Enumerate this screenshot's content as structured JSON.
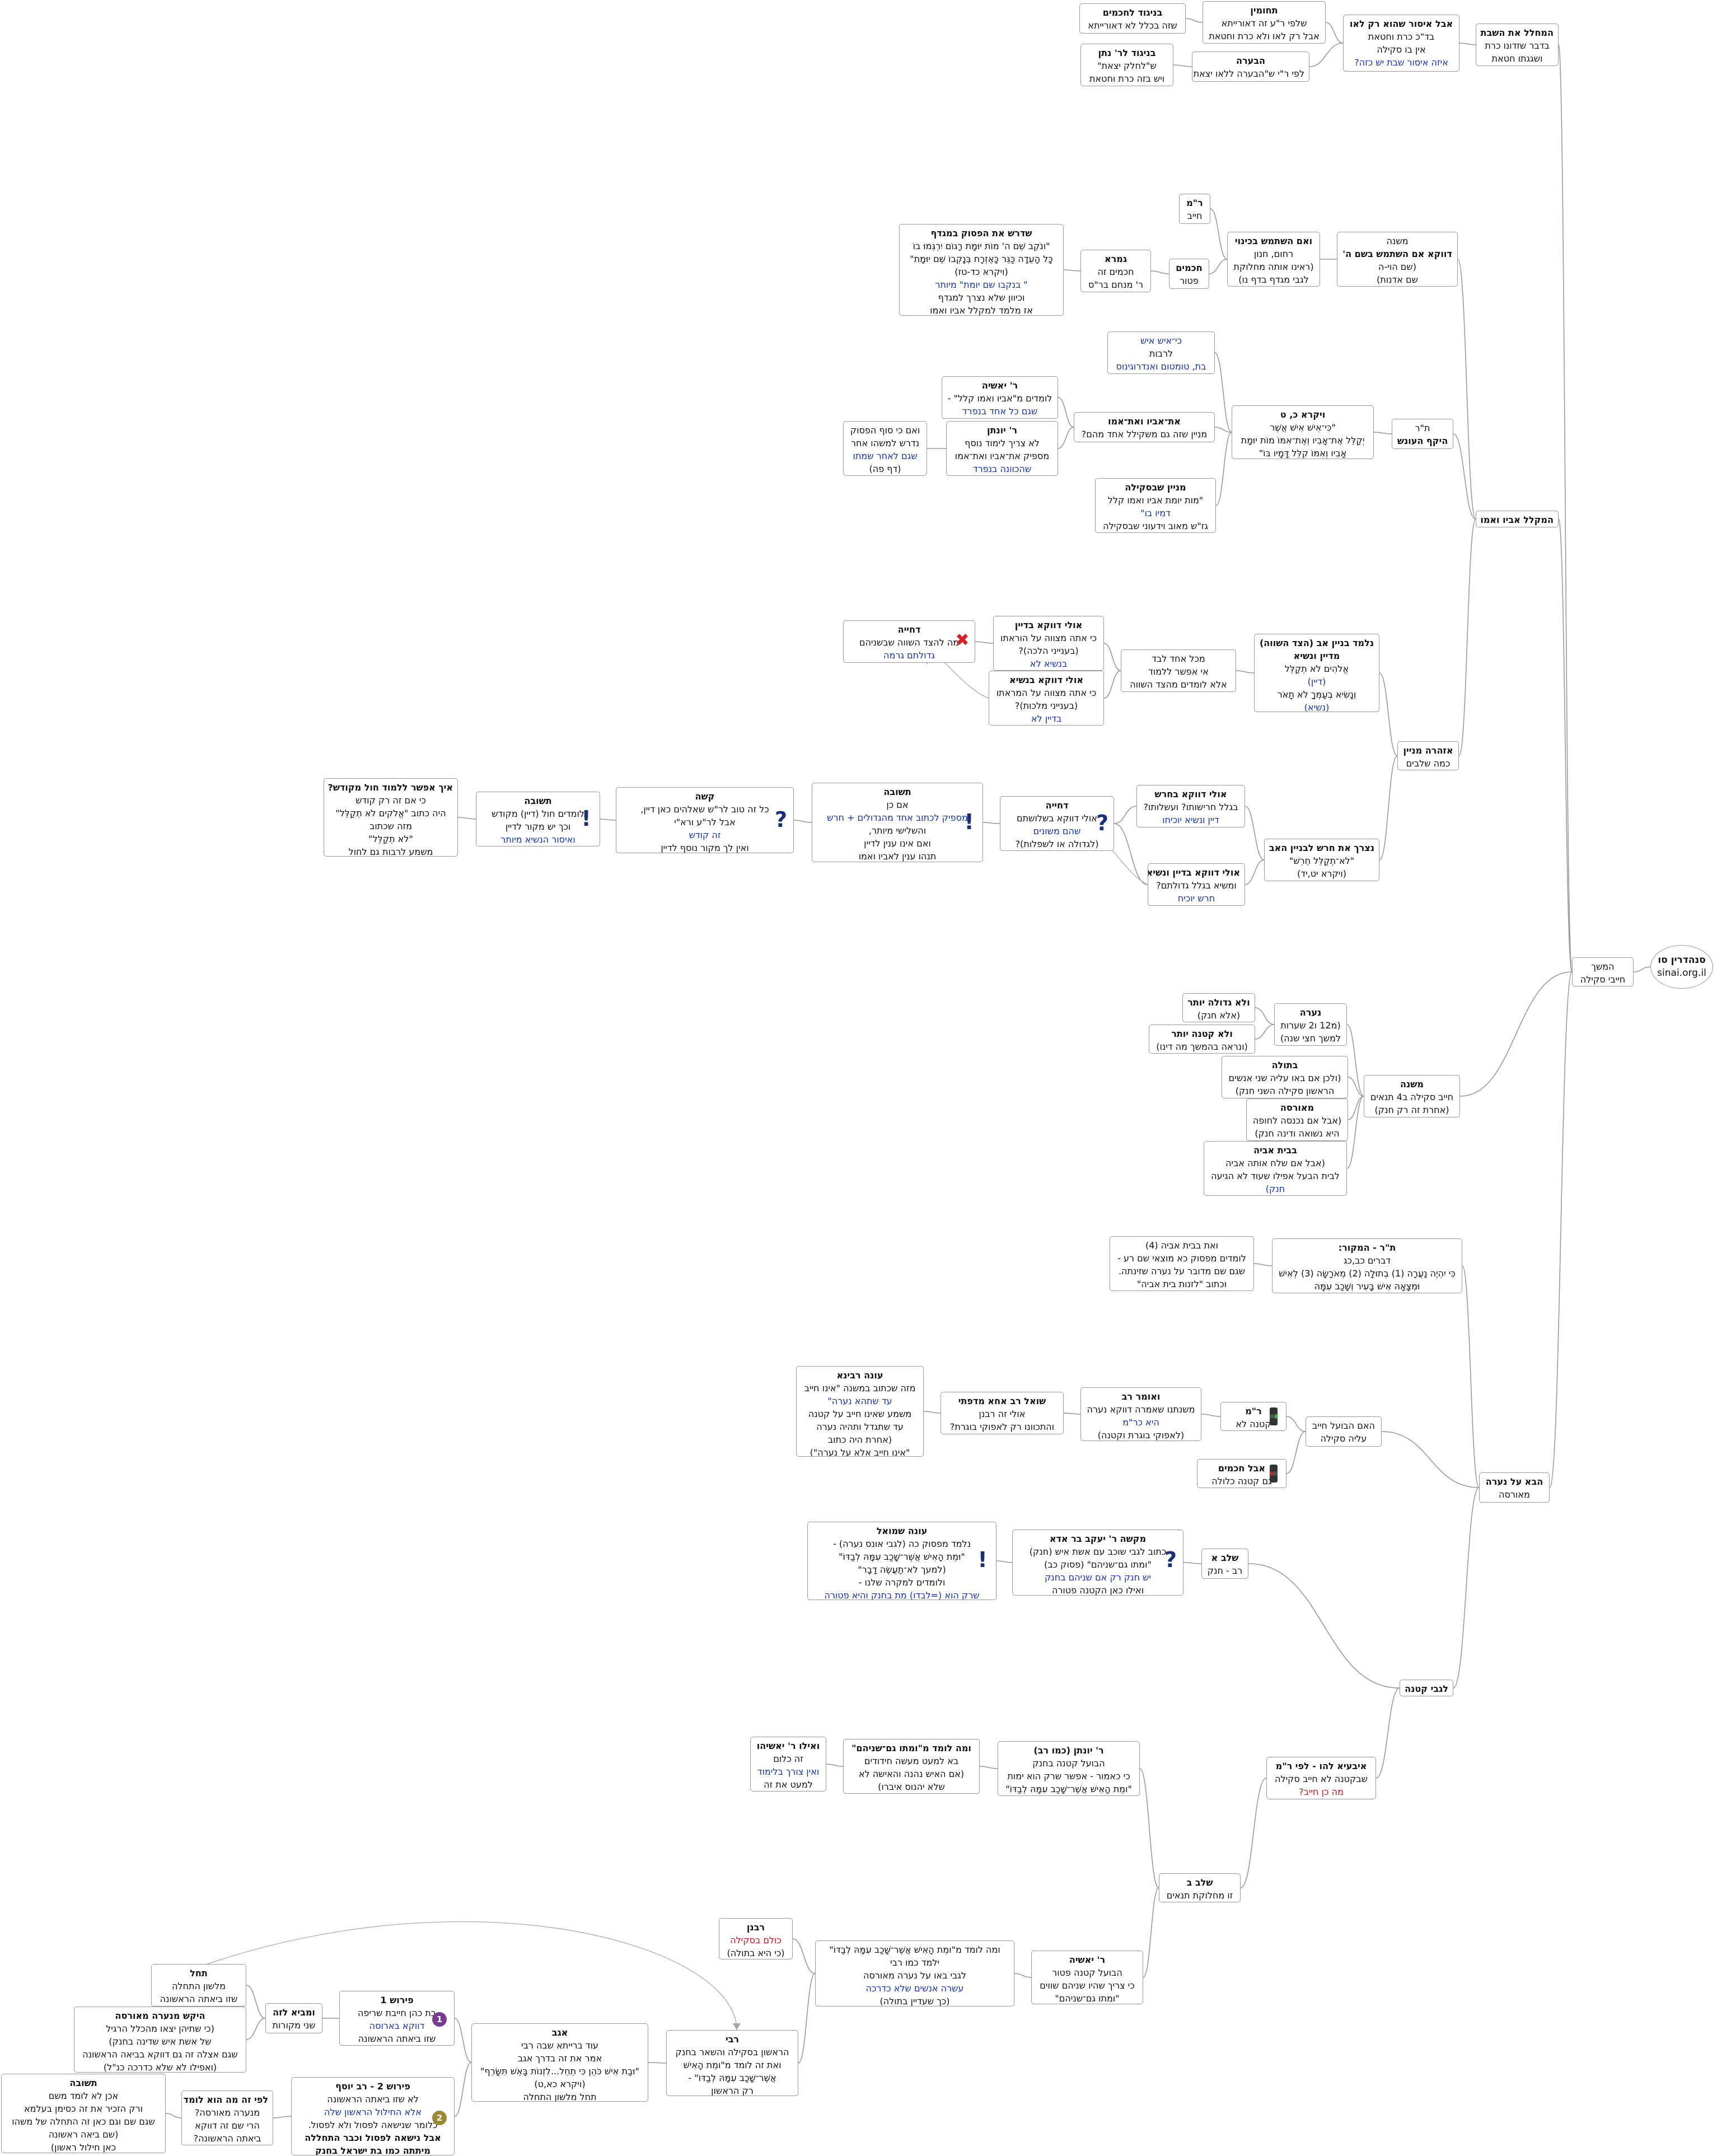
{
  "root": {
    "title": "סנהדרין סו",
    "site": "sinai.org.il"
  },
  "colors": {
    "blue": "#1030c8",
    "red": "#d01414",
    "line": "#9a9a9a",
    "icon": "#1a2f7a"
  },
  "nodes": {
    "hemshech": [
      "המשך",
      "חייבי סקילה"
    ],
    "mechalel": [
      "המחלל את השבת",
      "בדבר שזדונו כרת",
      "ושגגתו חטאת"
    ],
    "aval_isur": [
      "אבל איסור שהוא רק לאו",
      "בד\"כ כרת וחטאת",
      "אין בו סקילה",
      "איזה איסור שבת יש כזה?"
    ],
    "tchumin": [
      "תחומין",
      "שלפי ר\"ע זה דאורייתא",
      "אבל רק לאו ולא כרת וחטאת"
    ],
    "bnigud_chachamim": [
      "בניגוד לחכמים",
      "שזה בכלל לא דאורייתא"
    ],
    "havara": [
      "הבערה",
      "לפי ר\"י ש\"הבערה ללאו יצאת\""
    ],
    "bnigud_rnatan": [
      "בניגוד לר' נתן",
      "ש\"לחלק יצאת\"",
      "ויש בזה כרת וחטאת"
    ],
    "hamekalel": [
      "המקלל אביו ואמו"
    ],
    "mishna_mekalel": [
      "משנה",
      "דווקא אם השתמש בשם ה'",
      "(שם הוי-ה",
      "שם אדנות)"
    ],
    "im_hishtamesh": [
      "ואם השתמש בכינוי",
      "רחום, חנון",
      "(ראינו אותה מחלוקת",
      "לגבי מגדף בדף נו)"
    ],
    "rm": [
      "ר\"מ",
      "חייב"
    ],
    "chachamim": [
      "חכמים",
      "פטור"
    ],
    "gemara_mekalel": [
      "גמרא",
      "חכמים זה",
      "ר' מנחם בר\"ס"
    ],
    "shdarash": [
      "שדרש את הפסוק במגדף",
      "\"ונֹקֵב שֵׁם ה' מוֹת יוּמָת רָגוֹם יִרְגְּמוּ בוֹ",
      "כָּל הָעֵדָה כַּגֵּר כָּאֶזְרָח בְּנָקְבוֹ שֵׁם יוּמָת\"",
      "(ויקרא כד-טז)",
      "\" בנקבו שם יומת\" מיותר",
      "וכיוון שלא נצרך למגדף",
      "אז מלמד למקלל אביו ואמו"
    ],
    "tr_hekesh": [
      "ת\"ר",
      "היקף העונש"
    ],
    "vayikra": [
      "ויקרא כ, ט",
      "\"כִּי־אִישׁ אִישׁ אֲשֶׁר",
      "יְקַלֵּל אֶת־אָבִיו וְאֶת־אִמּוֹ מוֹת יוּמָת",
      "אָבִיו וְאִמּוֹ קִלֵּל דָּמָיו בּוֹ\""
    ],
    "ki_ish": [
      "כי־איש איש",
      "לרבות",
      "בת, טומטום ואנדרוגינוס"
    ],
    "et_aviv": [
      "את־אביו ואת־אמו",
      "מניין שזה גם משקילל אחד מהם?"
    ],
    "rashia": [
      "ר' יאשיה",
      "לומדים מ\"אביו ואמו קלל\" -",
      "שגם כל אחד בנפרד"
    ],
    "ryonatan": [
      "ר' יונתן",
      "לא צריך לימוד נוסף",
      "מספיק את־אביו ואת־אמו",
      "שהכוונה בנפרד"
    ],
    "veim_ki": [
      "ואם כי סוף הפסוק",
      "נדרש למשהו אחר",
      "שגם לאחר שמתו",
      "(דף פה)"
    ],
    "minayin_skila": [
      "מניין שבסקילה",
      "\"מות יומת אביו ואמו קלל",
      "דמיו בו\"",
      "גז\"ש מאוב וידעוני שבסקילה"
    ],
    "azhara": [
      "אזהרה מניין",
      "כמה שלבים"
    ],
    "nilmad_binyan": [
      "נלמד בניין אב (הצד השווה)",
      "מדיין ונשיא",
      "אֱלֹהִים לֹא תְקַלֵּל",
      "(דיין)",
      "וְנָשִׂיא בְעַמְּךָ לֹא תָאֹר",
      "(נשיא)"
    ],
    "mikol_echad": [
      "מכל אחד לבד",
      "אי אפשר ללמוד",
      "אלא לומדים מהצד השווה"
    ],
    "ulay_dayan": [
      "אולי דווקא  בדיין",
      "כי אתה מצווה על הוראתו",
      "(בענייני הלכה)?",
      "בנשיא לא"
    ],
    "ulay_nasi": [
      "אולי דווקא  בנשיא",
      "כי אתה מצווה על המראתו",
      "(בענייני מלכות)?",
      "בדיין לא"
    ],
    "dchiya1": [
      "דחייה",
      "מה להצד השווה שבשניהם",
      "גדולתם גרמה"
    ],
    "nizrach": [
      "נצרך את חרש לבניין האב",
      "\"לא־תְקַלֵּל חֵרֵשׁ\"",
      "(ויקרא יט,יד)"
    ],
    "ulay_cheresh": [
      "אולי דווקא בחרש",
      "בגלל חרישותו? ועשלותו?",
      "דיין ונשיא יוכיחו"
    ],
    "ulay_dayan_nasi": [
      "אולי דווקא בדיין ונשיא",
      "ומשיא בגלל גדולתם?",
      "חרש יוכיח"
    ],
    "dchiya2": [
      "דחייה",
      "אולי דווקא בשלושתם",
      "שהם משונים",
      "(לגדולה או לשפלות)?"
    ],
    "tshuva1": [
      "תשובה",
      "אם כן",
      "מספיק לכתוב אחד מהגדולים + חרש",
      "והשלישי מיותר,",
      "ואם אינו ענין לדיין",
      "תנהו ענין לאביו ואמו"
    ],
    "kashe": [
      "קשה",
      "כל זה טוב לר\"ש שאלהים כאן דיין,",
      "אבל לר\"ע ורא\"י",
      "זה קודש",
      "ואין לך מקור נוסף לדיין"
    ],
    "tshuva2": [
      "תשובה",
      "לומדים חול (דיין) מקודש",
      "וכך יש מקור לדיין",
      "ואיסור הנשיא מיותר"
    ],
    "eich": [
      "איך אפשר ללמוד חול מקודש?",
      "כי אם זה רק קודש",
      "היה כתוב \"אֱלֹקים לֹא תְקַלֵּל\"",
      "מזה שכתוב",
      "\"לא תְקַלֵּל\"",
      "משמע לרבות גם לחול"
    ],
    "mishna_naara": [
      "משנה",
      "חייב סקילה ב4 תנאים",
      "(אחרת זה רק חנק)"
    ],
    "naara": [
      "נערה",
      "(מ12 ו2 שערות",
      "למשך חצי שנה)"
    ],
    "velo_gdola": [
      "ולא גדולה יותר",
      "(אלא חנק)"
    ],
    "velo_ktana": [
      "ולא קטנה יותר",
      "(ונראה בהמשך מה דינו)"
    ],
    "btula": [
      "בתולה",
      "(ולכן אם באו עליה שני אנשים",
      "הראשון סקילה השני חנק)"
    ],
    "meorasa": [
      "מאורסה",
      "(אבל אם נכנסה לחופה",
      "היא נשואה ודינה חנק)"
    ],
    "beit_aviha": [
      "בבית אביה",
      "(אבל אם שלח אותה אביה",
      "לבית הבעל אפילו שעוד לא הגיעה",
      "חנק)"
    ],
    "tr_hamakor": [
      "ת\"ר - המקור:",
      "דברים כב,כג",
      "כִּי יִהְיֶה נַעֲרָה (1) בְתוּלָה (2) מְאֹרָשָׂה (3) לְאִישׁ",
      "וּמְצָאָהּ אִישׁ בָּעִיר וְשָׁכַב עִמָּהּ"
    ],
    "veet_beit": [
      "ואת בבית אביה (4)",
      "לומדים מפסוק כא  מוצאי שם רע -",
      "שגם שם מדובר על נערה שזינתה.",
      "וכתוב \"לזנות בית אביה\""
    ],
    "haba_al": [
      "הבא על נערה",
      "מאורסה"
    ],
    "haim_habaal": [
      "האם הבועל חייב",
      "עליה סקילה"
    ],
    "rm2": [
      "ר\"מ",
      "קטנה לא"
    ],
    "aval_chachamim": [
      "אבל חכמים",
      "גם קטנה כלולה"
    ],
    "veomer_rav": [
      "ואומר רב",
      "משנתנו שאמרה דווקא נערה",
      "היא כר\"מ",
      "(לאפוקי בוגרת וקטנה)"
    ],
    "shoel_rav": [
      "שואל רב אחא מדפתי",
      "אולי זה רבנן",
      "והתכוונו רק לאפוקי בוגרת?"
    ],
    "one_ravina": [
      "עונה רבינא",
      "מזה שכתוב במשנה \"אינו חייב",
      "עד שתהא נערה\"",
      "משמע שאינו חייב על קטנה",
      "עד שתגדל ותהיה נערה",
      "(אחרת היה כתוב",
      "\"אינו חייב אלא על נערה\")"
    ],
    "lgabei_ktana": [
      "לגבי קטנה"
    ],
    "shalav_a": [
      "שלב א",
      "רב - חנק"
    ],
    "makshe_rya": [
      "מקשה ר' יעקב בר אדא",
      "כתוב לגבי שוכב עם אשת איש (חנק)",
      "\"ומתו גם־שניהם\" (פסוק כב)",
      "יש חנק רק אם שניהם בחנק",
      "ואילו כאן הקטנה פטורה"
    ],
    "one_shmuel": [
      "עונה שמואל",
      "נלמד מפסוק כה (לגבי אונס נערה) -",
      "\"וּמֵת הָאִישׁ אֲשֶׁר־שָׁכַב עִמָּהּ לְבַדּוֹ\"",
      "(למעך לא־תַעֲשֶׂה דָבָר\"",
      "ולומדים למקרה שלנו -",
      "שרק הוא (=לבדו) מת בחנק והיא פטורה"
    ],
    "iba": [
      "איבעיא להו - לפי ר\"מ",
      "שבקטנה  לא חייב סקילה",
      "מה כן חייב?"
    ],
    "shalav_b": [
      "שלב ב",
      "זו מחלוקת תנאים"
    ],
    "ryonatan_rav": [
      "ר' יונתן (כמו רב)",
      "הבועל קטנה בחנק",
      "כי כאמור - אפשר שרק הוא ימות",
      "\"ומֵת הָאִישׁ אֲשֶׁר־שָׁכַב עִמָּהּ לְבַדּוֹ\""
    ],
    "uma_lomed": [
      "ומה לומד מ\"ומתו גם־שניהם\"",
      "בא למעט מעשה חידודים",
      "(אם האיש נהנה והאישה לא",
      "שלא יהנוס איברו)"
    ],
    "veilu_ryashia": [
      "ואילו ר' יאשיהו",
      "זה כלום",
      "ואין צורך בלימוד",
      "למעט את זה"
    ],
    "ryashia2": [
      "ר' יאשיה",
      "הבועל קטנה פטור",
      "כי צריך שהיו שניהם שווים",
      "\"ומתו גם־שניהם\""
    ],
    "uma_lomed2": [
      "ומה לומד מ\"ומֵת הָאִישׁ אֲשֶׁר־שָׁכַב עִמָּהּ לְבַדּוֹ\"",
      "ילמד כמו רבי",
      "לגבי באו על נערה מאורסה",
      "עשרה אנשים שלא כדרכה",
      "(כך שעדיין בתולה)"
    ],
    "rabanan": [
      "רבנן",
      "כולם בסקילה",
      "(כי היא בתולה)"
    ],
    "rabi": [
      "רבי",
      "הראשון בסקילה  והשאר בחנק",
      "ואת זה לומד מ\"ומֵת הָאִישׁ",
      "אֲשֶׁר־שָׁכַב עִמָּהּ לְבַדּוֹ\" -",
      "רק הראשון"
    ],
    "agav": [
      "אגב",
      "עוד ברייתא שבה רבי",
      "אמר את זה בדרך אגב",
      "\"וּבַת אִישׁ כֹּהֵן כִּי תֵחֵל...לִזְנוֹת בָּאֵשׁ תִּשָּׂרֵף\"",
      "(ויקרא כא,ט)",
      "תחל מלשון התחלה"
    ],
    "perush1": [
      "פירוש 1",
      "בת כהן חייבת שריפה",
      "דווקא בארוסה",
      "שזו ביאתה הראשונה"
    ],
    "umibe": [
      "ומביא לזה",
      "שני מקורות"
    ],
    "tachel": [
      "תחל",
      "מלשון התחלה",
      "שזו ביאתה הראשונה"
    ],
    "hekesh": [
      "היקש מנערה מאורסה",
      "(כי שתיהן יצאו מהכלל הרגיל",
      "של אשת איש שדינה בחנק)",
      "שגם אצלה זה גם דווקא בביאה הראשונה",
      "(ואפילו לא שלא כדרכה כנ\"ל)"
    ],
    "perush2": [
      "פירוש 2 - רב יוסף",
      "לא שזו ביאתה הראשונה",
      "אלא החילול הראשון שלה",
      "כלומר שנישאה לפסול ולא לפסול.",
      "אבל נישאה לפסול וכבר התחללה",
      "מיתתה כמו בת ישראל בחנק"
    ],
    "lefi_ze": [
      "לפי זה מה הוא לומד",
      "מנערה מאורסה?",
      "הרי שם זה דווקא",
      "ביאתה הראשונה?"
    ],
    "tshuva3": [
      "תשובה",
      "אכן לא לומד משם",
      "ורק הזכיר את זה כסימן בעלמא",
      "שגם שם וגם כאן זה התחלה של משהו",
      "(שם ביאה ראשונה",
      "כאן חילול ראשון)"
    ]
  }
}
